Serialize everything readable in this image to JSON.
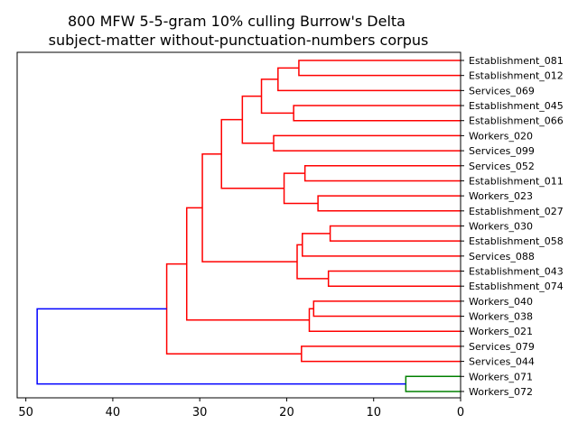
{
  "chart_data": {
    "type": "dendrogram",
    "title_line1": "800 MFW 5-5-gram 10% culling Burrow's Delta",
    "title_line2": "subject-matter without-punctuation-numbers corpus",
    "xlabel": "",
    "ylabel": "",
    "xlim": [
      51,
      0
    ],
    "x_ticks": [
      50,
      40,
      30,
      20,
      10,
      0
    ],
    "x_tick_labels": [
      "50",
      "40",
      "30",
      "20",
      "10",
      "0"
    ],
    "leaves": [
      "Establishment_081",
      "Establishment_012",
      "Services_069",
      "Establishment_045",
      "Establishment_066",
      "Workers_020",
      "Services_099",
      "Services_052",
      "Establishment_011",
      "Workers_023",
      "Establishment_027",
      "Workers_030",
      "Establishment_058",
      "Services_088",
      "Establishment_043",
      "Establishment_074",
      "Workers_040",
      "Workers_038",
      "Workers_021",
      "Services_079",
      "Services_044",
      "Workers_071",
      "Workers_072"
    ],
    "merges": [
      {
        "id": "m1",
        "a": 0,
        "b": 1,
        "height": 18.6,
        "color": "red"
      },
      {
        "id": "m2",
        "a": "m1",
        "b": 2,
        "height": 21.0,
        "color": "red"
      },
      {
        "id": "m3",
        "a": 3,
        "b": 4,
        "height": 19.2,
        "color": "red"
      },
      {
        "id": "m4",
        "a": "m2",
        "b": "m3",
        "height": 22.9,
        "color": "red"
      },
      {
        "id": "m5",
        "a": 5,
        "b": 6,
        "height": 21.5,
        "color": "red"
      },
      {
        "id": "m6",
        "a": "m4",
        "b": "m5",
        "height": 25.1,
        "color": "red"
      },
      {
        "id": "m7",
        "a": 7,
        "b": 8,
        "height": 17.9,
        "color": "red"
      },
      {
        "id": "m8",
        "a": 9,
        "b": 10,
        "height": 16.4,
        "color": "red"
      },
      {
        "id": "m9",
        "a": "m7",
        "b": "m8",
        "height": 20.3,
        "color": "red"
      },
      {
        "id": "m10",
        "a": "m6",
        "b": "m9",
        "height": 27.5,
        "color": "red"
      },
      {
        "id": "m11",
        "a": 11,
        "b": 12,
        "height": 15.0,
        "color": "red"
      },
      {
        "id": "m12",
        "a": "m11",
        "b": 13,
        "height": 18.2,
        "color": "red"
      },
      {
        "id": "m13",
        "a": 14,
        "b": 15,
        "height": 15.2,
        "color": "red"
      },
      {
        "id": "m14",
        "a": "m12",
        "b": "m13",
        "height": 18.8,
        "color": "red"
      },
      {
        "id": "m15",
        "a": "m10",
        "b": "m14",
        "height": 29.7,
        "color": "red"
      },
      {
        "id": "m16",
        "a": 16,
        "b": 17,
        "height": 16.9,
        "color": "red"
      },
      {
        "id": "m17",
        "a": "m16",
        "b": 18,
        "height": 17.4,
        "color": "red"
      },
      {
        "id": "m18",
        "a": "m15",
        "b": "m17",
        "height": 31.5,
        "color": "red"
      },
      {
        "id": "m19",
        "a": 19,
        "b": 20,
        "height": 18.3,
        "color": "red"
      },
      {
        "id": "m20",
        "a": "m18",
        "b": "m19",
        "height": 33.8,
        "color": "red"
      },
      {
        "id": "m21",
        "a": 21,
        "b": 22,
        "height": 6.3,
        "color": "green"
      },
      {
        "id": "m22",
        "a": "m20",
        "b": "m21",
        "height": 48.7,
        "color": "blue"
      }
    ],
    "colors": {
      "red": "#ff0000",
      "green": "#008000",
      "blue": "#0000ff",
      "axis": "#000000"
    },
    "grid": false
  }
}
